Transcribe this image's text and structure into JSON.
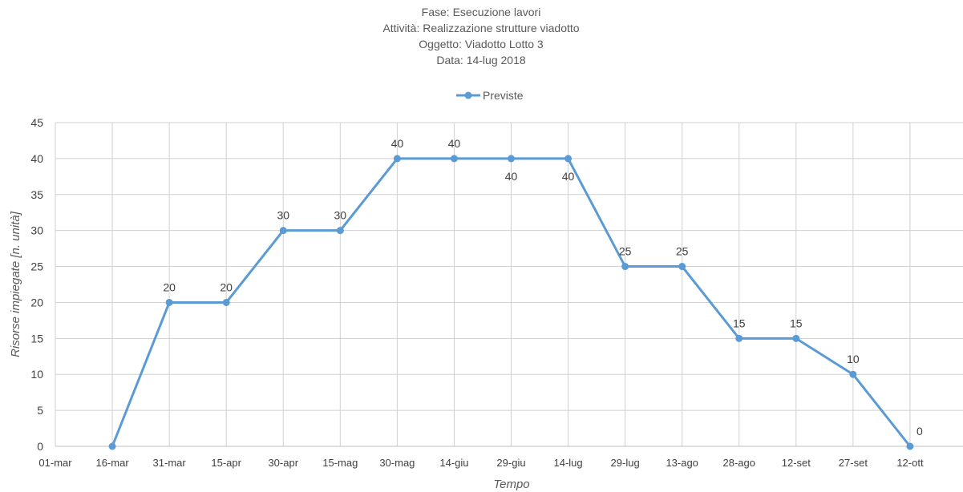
{
  "chart_data": {
    "type": "line",
    "title_lines": [
      "Fase: Esecuzione lavori",
      "Attività: Realizzazione strutture viadotto",
      "Oggetto: Viadotto Lotto 3",
      "Data: 14-lug 2018"
    ],
    "xlabel": "Tempo",
    "ylabel": "Risorse impiegate [n. unità]",
    "ylim": [
      0,
      45
    ],
    "yticks": [
      0,
      5,
      10,
      15,
      20,
      25,
      30,
      35,
      40,
      45
    ],
    "categories": [
      "01-mar",
      "16-mar",
      "31-mar",
      "15-apr",
      "30-apr",
      "15-mag",
      "30-mag",
      "14-giu",
      "29-giu",
      "14-lug",
      "29-lug",
      "13-ago",
      "28-ago",
      "12-set",
      "27-set",
      "12-ott"
    ],
    "grid": true,
    "legend_position": "top",
    "series": [
      {
        "name": "Previste",
        "color": "#5b9bd5",
        "values": [
          null,
          0,
          20,
          20,
          30,
          30,
          40,
          40,
          40,
          40,
          25,
          25,
          15,
          15,
          10,
          0
        ],
        "data_labels": [
          null,
          null,
          "20",
          "20",
          "30",
          "30",
          "40",
          "40",
          "40",
          "40",
          "25",
          "25",
          "15",
          "15",
          "10",
          "0"
        ],
        "label_below": [
          false,
          false,
          false,
          false,
          false,
          false,
          false,
          false,
          true,
          true,
          false,
          false,
          false,
          false,
          false,
          false
        ]
      }
    ]
  }
}
